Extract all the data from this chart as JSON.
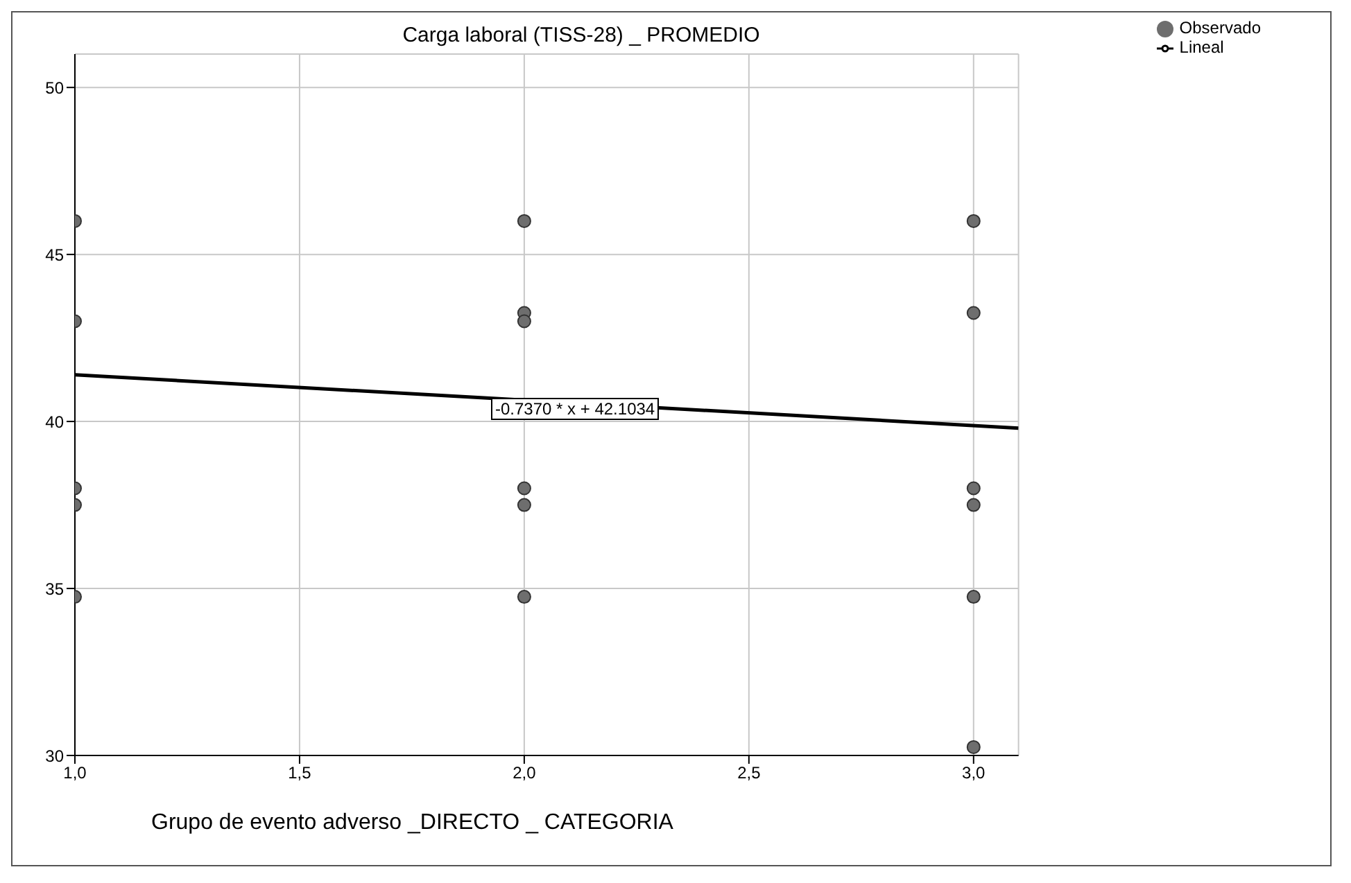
{
  "chart_data": {
    "type": "scatter",
    "title": "Carga laboral (TISS-28) _ PROMEDIO",
    "xlabel": "Grupo de evento adverso _DIRECTO _ CATEGORIA",
    "x": [
      1,
      1,
      1,
      1,
      1,
      2,
      2,
      2,
      2,
      2,
      2,
      3,
      3,
      3,
      3,
      3,
      3
    ],
    "series": [
      {
        "name": "Observado",
        "marker": "circle",
        "color": "#6e6e6e",
        "values": [
          46,
          43,
          38,
          37.5,
          34.75,
          46,
          43.25,
          43,
          38,
          37.5,
          34.75,
          46,
          43.25,
          38,
          37.5,
          34.75,
          30.25
        ]
      },
      {
        "name": "Lineal",
        "type": "line",
        "marker": "none",
        "color": "#000000",
        "x": [
          1,
          3.1
        ],
        "values": [
          41.4,
          39.8
        ]
      }
    ],
    "annotations": [
      "-0.7370 * x + 42.1034"
    ],
    "xlim": [
      1,
      3.1
    ],
    "xticks": [
      {
        "value": 1,
        "label": "1,0"
      },
      {
        "value": 1.5,
        "label": "1,5"
      },
      {
        "value": 2,
        "label": "2,0"
      },
      {
        "value": 2.5,
        "label": "2,5"
      },
      {
        "value": 3,
        "label": "3,0"
      }
    ],
    "ylim": [
      30,
      51
    ],
    "yticks": [
      30,
      35,
      40,
      45,
      50
    ],
    "grid": true,
    "legend": "top right"
  }
}
